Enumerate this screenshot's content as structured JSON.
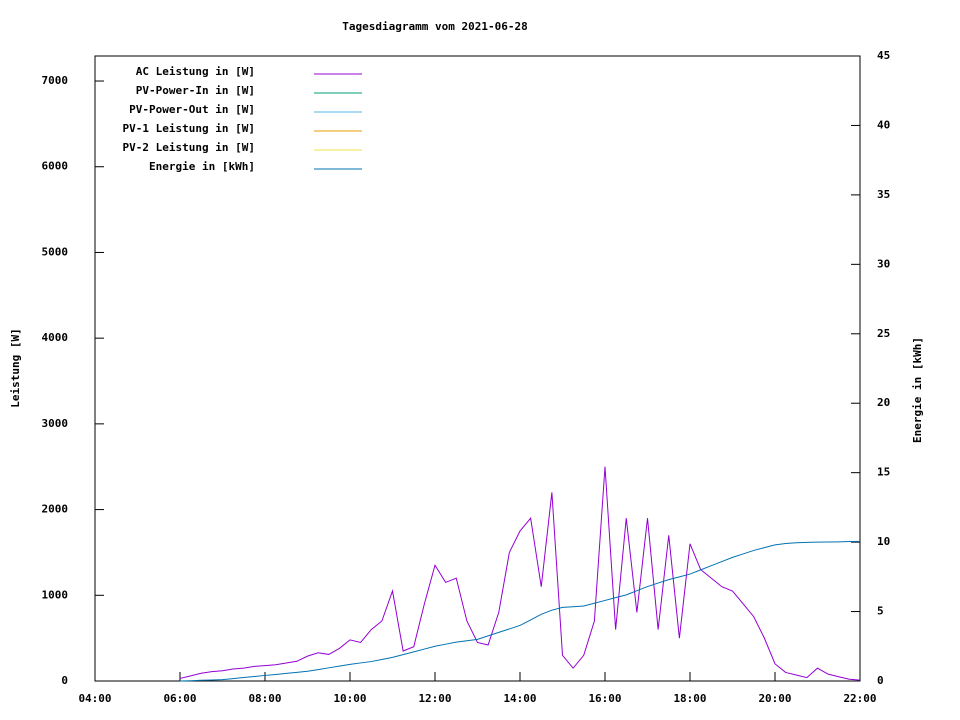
{
  "chart_data": {
    "type": "line",
    "title": "Tagesdiagramm vom 2021-06-28",
    "ylabel": "Leistung [W]",
    "y2label": "Energie in [kWh]",
    "x": [
      6,
      6.25,
      6.5,
      6.75,
      7,
      7.25,
      7.5,
      7.75,
      8,
      8.25,
      8.5,
      8.75,
      9,
      9.25,
      9.5,
      9.75,
      10,
      10.25,
      10.5,
      10.75,
      11,
      11.25,
      11.5,
      11.75,
      12,
      12.25,
      12.5,
      12.75,
      13,
      13.25,
      13.5,
      13.75,
      14,
      14.25,
      14.5,
      14.75,
      15,
      15.25,
      15.5,
      15.75,
      16,
      16.25,
      16.5,
      16.75,
      17,
      17.25,
      17.5,
      17.75,
      18,
      18.25,
      18.5,
      18.75,
      19,
      19.25,
      19.5,
      19.75,
      20,
      20.25,
      20.5,
      20.75,
      21,
      21.25,
      21.5,
      21.75,
      22
    ],
    "series": [
      {
        "name": "AC Leistung in [W]",
        "color": "#9400d3",
        "values": [
          30,
          60,
          90,
          110,
          120,
          140,
          150,
          170,
          180,
          190,
          210,
          230,
          290,
          330,
          310,
          380,
          480,
          450,
          600,
          700,
          1050,
          350,
          400,
          900,
          1350,
          1150,
          1200,
          700,
          450,
          420,
          800,
          1500,
          1750,
          1900,
          1100,
          2200,
          300,
          150,
          300,
          700,
          2500,
          600,
          1900,
          800,
          1900,
          600,
          1700,
          500,
          1600,
          1300,
          1200,
          1100,
          1050,
          900,
          750,
          500,
          200,
          100,
          70,
          40,
          150,
          80,
          50,
          20,
          10
        ]
      },
      {
        "name": "PV-Power-In in [W]",
        "color": "#009e73",
        "values": [
          null,
          null,
          null,
          null,
          null,
          null,
          null,
          null,
          null,
          null,
          null,
          null,
          null,
          null,
          null,
          null,
          null,
          null,
          null,
          null,
          null,
          null,
          null,
          null,
          null,
          null,
          null,
          null,
          null,
          null,
          null,
          null,
          null,
          null,
          null,
          null,
          null,
          null,
          null,
          null,
          null,
          null,
          null,
          null,
          null,
          null,
          null,
          null,
          null,
          null,
          null,
          null,
          null,
          null,
          null,
          null,
          null,
          null,
          null,
          null,
          null,
          null,
          null,
          null,
          null
        ]
      },
      {
        "name": "PV-Power-Out in [W]",
        "color": "#56b4e9",
        "values": [
          null,
          null,
          null,
          null,
          null,
          null,
          null,
          null,
          null,
          null,
          null,
          null,
          null,
          null,
          null,
          null,
          null,
          null,
          null,
          null,
          null,
          null,
          null,
          null,
          null,
          null,
          null,
          null,
          null,
          null,
          null,
          null,
          null,
          null,
          null,
          null,
          null,
          null,
          null,
          null,
          null,
          null,
          null,
          null,
          null,
          null,
          null,
          null,
          null,
          null,
          null,
          null,
          null,
          null,
          null,
          null,
          null,
          null,
          null,
          null,
          null,
          null,
          null,
          null,
          null
        ]
      },
      {
        "name": "PV-1 Leistung in [W]",
        "color": "#e69f00",
        "values": [
          null,
          null,
          null,
          null,
          null,
          null,
          null,
          null,
          null,
          null,
          null,
          null,
          null,
          null,
          null,
          null,
          null,
          null,
          null,
          null,
          null,
          null,
          null,
          null,
          null,
          null,
          null,
          null,
          null,
          null,
          null,
          null,
          null,
          null,
          null,
          null,
          null,
          null,
          null,
          null,
          null,
          null,
          null,
          null,
          null,
          null,
          null,
          null,
          null,
          null,
          null,
          null,
          null,
          null,
          null,
          null,
          null,
          null,
          null,
          null,
          null,
          null,
          null,
          null,
          null
        ]
      },
      {
        "name": "PV-2 Leistung in [W]",
        "color": "#f0e442",
        "values": [
          null,
          null,
          null,
          null,
          null,
          null,
          null,
          null,
          null,
          null,
          null,
          null,
          null,
          null,
          null,
          null,
          null,
          null,
          null,
          null,
          null,
          null,
          null,
          null,
          null,
          null,
          null,
          null,
          null,
          null,
          null,
          null,
          null,
          null,
          null,
          null,
          null,
          null,
          null,
          null,
          null,
          null,
          null,
          null,
          null,
          null,
          null,
          null,
          null,
          null,
          null,
          null,
          null,
          null,
          null,
          null,
          null,
          null,
          null,
          null,
          null,
          null,
          null,
          null,
          null
        ]
      },
      {
        "name": "Energie in [kWh]",
        "color": "#0072b2",
        "axis": "y2",
        "values": [
          0,
          0.02,
          0.05,
          0.07,
          0.1,
          0.17,
          0.25,
          0.32,
          0.4,
          0.47,
          0.55,
          0.62,
          0.7,
          0.82,
          0.95,
          1.07,
          1.2,
          1.3,
          1.4,
          1.55,
          1.7,
          1.9,
          2.1,
          2.3,
          2.5,
          2.65,
          2.8,
          2.9,
          3.0,
          3.25,
          3.5,
          3.75,
          4.0,
          4.4,
          4.8,
          5.1,
          5.3,
          5.35,
          5.4,
          5.6,
          5.8,
          6.0,
          6.2,
          6.5,
          6.8,
          7.05,
          7.3,
          7.5,
          7.7,
          8.0,
          8.3,
          8.6,
          8.9,
          9.15,
          9.4,
          9.6,
          9.8,
          9.9,
          9.95,
          9.98,
          10.0,
          10.01,
          10.02,
          10.04,
          10.05
        ]
      }
    ],
    "xlim": [
      4,
      22
    ],
    "xticks": [
      {
        "value": 4,
        "label": "04:00"
      },
      {
        "value": 6,
        "label": "06:00"
      },
      {
        "value": 8,
        "label": "08:00"
      },
      {
        "value": 10,
        "label": "10:00"
      },
      {
        "value": 12,
        "label": "12:00"
      },
      {
        "value": 14,
        "label": "14:00"
      },
      {
        "value": 16,
        "label": "16:00"
      },
      {
        "value": 18,
        "label": "18:00"
      },
      {
        "value": 20,
        "label": "20:00"
      },
      {
        "value": 22,
        "label": "22:00"
      }
    ],
    "ylim": [
      0,
      7292
    ],
    "yticks": [
      0,
      1000,
      2000,
      3000,
      4000,
      5000,
      6000,
      7000
    ],
    "y2lim": [
      0,
      45
    ],
    "y2ticks": [
      0,
      5,
      10,
      15,
      20,
      25,
      30,
      35,
      40,
      45
    ],
    "legend": "upper-left"
  }
}
